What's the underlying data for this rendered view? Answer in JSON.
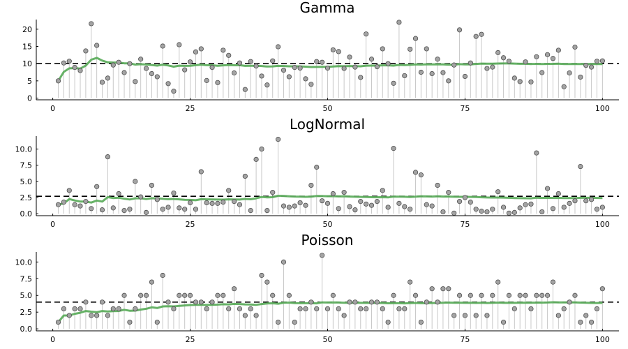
{
  "chart_data": [
    {
      "type": "scatter",
      "title": "Gamma",
      "xlim": [
        -3,
        103
      ],
      "ylim": [
        -0.5,
        22.8
      ],
      "xticks": [
        0,
        25,
        50,
        75,
        100
      ],
      "xtick_labels": [
        "0",
        "25",
        "50",
        "75",
        "100"
      ],
      "yticks": [
        0,
        5,
        10,
        15,
        20
      ],
      "ytick_labels": [
        "0",
        "5",
        "10",
        "15",
        "20"
      ],
      "reference_line": 10,
      "x": [
        1,
        2,
        3,
        4,
        5,
        6,
        7,
        8,
        9,
        10,
        11,
        12,
        13,
        14,
        15,
        16,
        17,
        18,
        19,
        20,
        21,
        22,
        23,
        24,
        25,
        26,
        27,
        28,
        29,
        30,
        31,
        32,
        33,
        34,
        35,
        36,
        37,
        38,
        39,
        40,
        41,
        42,
        43,
        44,
        45,
        46,
        47,
        48,
        49,
        50,
        51,
        52,
        53,
        54,
        55,
        56,
        57,
        58,
        59,
        60,
        61,
        62,
        63,
        64,
        65,
        66,
        67,
        68,
        69,
        70,
        71,
        72,
        73,
        74,
        75,
        76,
        77,
        78,
        79,
        80,
        81,
        82,
        83,
        84,
        85,
        86,
        87,
        88,
        89,
        90,
        91,
        92,
        93,
        94,
        95,
        96,
        97,
        98,
        99,
        100
      ],
      "values": [
        5.0,
        10.2,
        10.7,
        8.9,
        8.0,
        13.7,
        21.6,
        15.3,
        4.6,
        5.8,
        9.6,
        10.4,
        7.4,
        10.0,
        4.8,
        11.3,
        8.6,
        7.1,
        6.2,
        15.1,
        4.2,
        2.0,
        15.5,
        8.2,
        10.5,
        13.4,
        14.3,
        5.1,
        8.9,
        4.5,
        13.9,
        12.4,
        7.3,
        10.2,
        2.5,
        10.6,
        9.3,
        6.4,
        3.8,
        10.8,
        14.9,
        8.1,
        6.2,
        8.9,
        8.7,
        5.6,
        4.0,
        10.6,
        10.4,
        8.7,
        14.0,
        13.5,
        8.6,
        11.9,
        9.0,
        6.0,
        18.6,
        11.3,
        9.1,
        14.3,
        10.0,
        4.3,
        22.0,
        6.5,
        14.2,
        17.3,
        7.5,
        14.3,
        7.1,
        11.3,
        7.4,
        5.0,
        9.6,
        19.8,
        6.3,
        10.2,
        17.9,
        18.5,
        8.6,
        9.0,
        13.2,
        11.7,
        10.7,
        5.8,
        4.8,
        10.5,
        4.7,
        12.0,
        7.4,
        12.6,
        11.5,
        13.9,
        3.3,
        7.3,
        14.8,
        6.1,
        9.5,
        9.0,
        10.7,
        10.8
      ],
      "running_mean": [
        5.0,
        7.6,
        8.63,
        8.7,
        8.56,
        9.42,
        11.16,
        11.68,
        10.89,
        10.38,
        10.31,
        10.32,
        10.09,
        10.08,
        9.73,
        9.83,
        9.76,
        9.61,
        9.43,
        9.72,
        9.46,
        9.13,
        9.4,
        9.35,
        9.39,
        9.54,
        9.72,
        9.55,
        9.53,
        9.36,
        9.5,
        9.59,
        9.52,
        9.54,
        9.34,
        9.38,
        9.38,
        9.3,
        9.16,
        9.2,
        9.34,
        9.31,
        9.23,
        9.22,
        9.21,
        9.13,
        9.02,
        9.05,
        9.08,
        9.07,
        9.17,
        9.26,
        9.25,
        9.3,
        9.29,
        9.23,
        9.4,
        9.43,
        9.42,
        9.5,
        9.51,
        9.43,
        9.63,
        9.58,
        9.65,
        9.77,
        9.74,
        9.81,
        9.78,
        9.81,
        9.78,
        9.72,
        9.72,
        9.85,
        9.8,
        9.8,
        9.91,
        10.02,
        10.0,
        9.98,
        10.03,
        10.05,
        10.06,
        10.01,
        9.95,
        9.95,
        9.89,
        9.92,
        9.89,
        9.92,
        9.94,
        9.98,
        9.9,
        9.87,
        9.92,
        9.88,
        9.88,
        9.87,
        9.88,
        9.89
      ]
    },
    {
      "type": "scatter",
      "title": "LogNormal",
      "xlim": [
        -3,
        103
      ],
      "ylim": [
        -0.3,
        12.0
      ],
      "xticks": [
        0,
        25,
        50,
        75,
        100
      ],
      "xtick_labels": [
        "0",
        "25",
        "50",
        "75",
        "100"
      ],
      "yticks": [
        0,
        2.5,
        5,
        7.5,
        10
      ],
      "ytick_labels": [
        "0.0",
        "2.5",
        "5.0",
        "7.5",
        "10.0"
      ],
      "reference_line": 2.7,
      "x": [
        1,
        2,
        3,
        4,
        5,
        6,
        7,
        8,
        9,
        10,
        11,
        12,
        13,
        14,
        15,
        16,
        17,
        18,
        19,
        20,
        21,
        22,
        23,
        24,
        25,
        26,
        27,
        28,
        29,
        30,
        31,
        32,
        33,
        34,
        35,
        36,
        37,
        38,
        39,
        40,
        41,
        42,
        43,
        44,
        45,
        46,
        47,
        48,
        49,
        50,
        51,
        52,
        53,
        54,
        55,
        56,
        57,
        58,
        59,
        60,
        61,
        62,
        63,
        64,
        65,
        66,
        67,
        68,
        69,
        70,
        71,
        72,
        73,
        74,
        75,
        76,
        77,
        78,
        79,
        80,
        81,
        82,
        83,
        84,
        85,
        86,
        87,
        88,
        89,
        90,
        91,
        92,
        93,
        94,
        95,
        96,
        97,
        98,
        99,
        100
      ],
      "values": [
        1.4,
        1.8,
        3.6,
        1.4,
        1.2,
        1.9,
        0.8,
        4.2,
        0.6,
        8.8,
        0.9,
        3.1,
        0.5,
        0.7,
        5.0,
        2.6,
        0.2,
        4.4,
        2.2,
        0.7,
        1.0,
        3.2,
        0.9,
        0.7,
        1.7,
        0.7,
        6.5,
        1.7,
        1.6,
        1.6,
        1.8,
        3.6,
        1.9,
        1.4,
        5.8,
        0.5,
        8.4,
        10.0,
        0.5,
        3.3,
        11.5,
        1.2,
        1.0,
        1.2,
        1.7,
        1.3,
        4.4,
        7.2,
        2.0,
        1.6,
        3.1,
        0.8,
        3.3,
        1.1,
        0.6,
        1.9,
        1.5,
        1.3,
        1.9,
        3.6,
        1.0,
        10.1,
        1.6,
        1.1,
        0.7,
        6.4,
        6.0,
        1.4,
        1.2,
        4.4,
        0.3,
        3.3,
        0.1,
        1.9,
        2.5,
        1.8,
        0.7,
        0.4,
        0.3,
        0.7,
        3.4,
        1.0,
        0.1,
        0.2,
        0.9,
        1.4,
        1.5,
        9.4,
        0.3,
        3.9,
        0.8,
        3.1,
        1.0,
        1.6,
        2.0,
        7.3,
        2.0,
        2.2,
        0.7,
        1.0
      ],
      "running_mean": [
        1.4,
        1.6,
        2.27,
        2.05,
        1.88,
        1.88,
        1.73,
        2.04,
        1.88,
        2.57,
        2.42,
        2.47,
        2.32,
        2.2,
        2.39,
        2.4,
        2.27,
        2.4,
        2.39,
        2.31,
        2.25,
        2.29,
        2.23,
        2.16,
        2.14,
        2.08,
        2.25,
        2.23,
        2.21,
        2.19,
        2.18,
        2.22,
        2.21,
        2.19,
        2.29,
        2.24,
        2.39,
        2.59,
        2.54,
        2.56,
        2.78,
        2.74,
        2.7,
        2.66,
        2.64,
        2.61,
        2.65,
        2.75,
        2.73,
        2.71,
        2.72,
        2.68,
        2.69,
        2.66,
        2.62,
        2.6,
        2.58,
        2.56,
        2.55,
        2.56,
        2.53,
        2.65,
        2.64,
        2.62,
        2.59,
        2.65,
        2.7,
        2.68,
        2.66,
        2.69,
        2.66,
        2.66,
        2.62,
        2.61,
        2.61,
        2.6,
        2.58,
        2.55,
        2.52,
        2.5,
        2.51,
        2.49,
        2.46,
        2.43,
        2.41,
        2.4,
        2.39,
        2.47,
        2.44,
        2.46,
        2.44,
        2.45,
        2.43,
        2.42,
        2.41,
        2.46,
        2.46,
        2.46,
        2.44,
        2.43
      ]
    },
    {
      "type": "scatter",
      "title": "Poisson",
      "xlim": [
        -3,
        103
      ],
      "ylim": [
        -0.3,
        11.5
      ],
      "xticks": [
        0,
        25,
        50,
        75,
        100
      ],
      "xtick_labels": [
        "0",
        "25",
        "50",
        "75",
        "100"
      ],
      "yticks": [
        0,
        2.5,
        5,
        7.5,
        10
      ],
      "ytick_labels": [
        "0.0",
        "2.5",
        "5.0",
        "7.5",
        "10.0"
      ],
      "reference_line": 4,
      "x": [
        1,
        2,
        3,
        4,
        5,
        6,
        7,
        8,
        9,
        10,
        11,
        12,
        13,
        14,
        15,
        16,
        17,
        18,
        19,
        20,
        21,
        22,
        23,
        24,
        25,
        26,
        27,
        28,
        29,
        30,
        31,
        32,
        33,
        34,
        35,
        36,
        37,
        38,
        39,
        40,
        41,
        42,
        43,
        44,
        45,
        46,
        47,
        48,
        49,
        50,
        51,
        52,
        53,
        54,
        55,
        56,
        57,
        58,
        59,
        60,
        61,
        62,
        63,
        64,
        65,
        66,
        67,
        68,
        69,
        70,
        71,
        72,
        73,
        74,
        75,
        76,
        77,
        78,
        79,
        80,
        81,
        82,
        83,
        84,
        85,
        86,
        87,
        88,
        89,
        90,
        91,
        92,
        93,
        94,
        95,
        96,
        97,
        98,
        99,
        100
      ],
      "values": [
        1,
        3,
        2,
        3,
        3,
        4,
        2,
        2,
        4,
        2,
        3,
        3,
        5,
        1,
        3,
        5,
        5,
        7,
        1,
        8,
        4,
        3,
        5,
        5,
        5,
        4,
        4,
        3,
        4,
        5,
        5,
        3,
        6,
        3,
        2,
        3,
        2,
        8,
        7,
        5,
        1,
        10,
        5,
        1,
        3,
        3,
        4,
        3,
        11,
        3,
        5,
        3,
        2,
        4,
        4,
        3,
        3,
        4,
        4,
        3,
        1,
        5,
        3,
        3,
        7,
        5,
        1,
        4,
        6,
        4,
        6,
        6,
        2,
        5,
        2,
        5,
        2,
        5,
        2,
        5,
        7,
        1,
        5,
        3,
        5,
        5,
        3,
        5,
        5,
        5,
        7,
        2,
        3,
        4,
        5,
        1,
        2,
        1,
        3,
        6
      ],
      "running_mean": [
        1.0,
        2.0,
        2.0,
        2.25,
        2.4,
        2.67,
        2.57,
        2.5,
        2.67,
        2.6,
        2.64,
        2.67,
        2.85,
        2.71,
        2.73,
        2.88,
        3.0,
        3.22,
        3.11,
        3.35,
        3.38,
        3.36,
        3.43,
        3.5,
        3.56,
        3.58,
        3.59,
        3.57,
        3.59,
        3.63,
        3.68,
        3.66,
        3.73,
        3.71,
        3.66,
        3.64,
        3.59,
        3.71,
        3.79,
        3.82,
        3.76,
        3.9,
        3.93,
        3.86,
        3.84,
        3.83,
        3.83,
        3.81,
        3.96,
        3.94,
        3.96,
        3.94,
        3.91,
        3.91,
        3.91,
        3.89,
        3.88,
        3.88,
        3.88,
        3.87,
        3.82,
        3.84,
        3.83,
        3.81,
        3.86,
        3.88,
        3.84,
        3.84,
        3.87,
        3.87,
        3.9,
        3.93,
        3.9,
        3.92,
        3.89,
        3.91,
        3.88,
        3.9,
        3.87,
        3.89,
        3.93,
        3.89,
        3.9,
        3.89,
        3.91,
        3.92,
        3.91,
        3.92,
        3.93,
        3.94,
        3.98,
        3.96,
        3.95,
        3.95,
        3.96,
        3.93,
        3.91,
        3.88,
        3.87,
        3.89
      ]
    }
  ],
  "style": {
    "point_fill": "#a3a3a3",
    "point_stroke": "#4f4f4f",
    "stem_color": "#c8c8c8",
    "running_mean_color": "#5fae5f",
    "reference_line_color": "#000000",
    "axis_color": "#000000"
  }
}
